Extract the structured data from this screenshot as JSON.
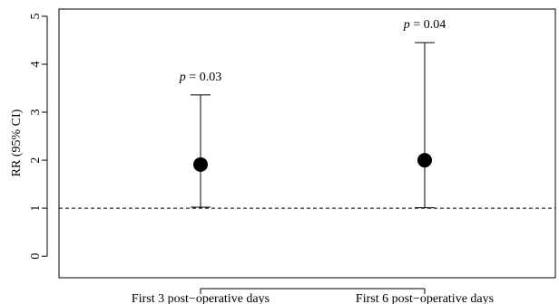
{
  "chart_data": {
    "type": "scatter",
    "ylabel": "RR (95% CI)",
    "ylim": [
      -0.45,
      5.15
    ],
    "yticks": [
      "0",
      "1",
      "2",
      "3",
      "4",
      "5"
    ],
    "reference_line": {
      "y": 1,
      "style": "dashed"
    },
    "categories": [
      "First 3 post−operative days",
      "First 6 post−operative days"
    ],
    "points": [
      {
        "category": "First 3 post−operative days",
        "rr": 1.91,
        "ci_low": 1.02,
        "ci_high": 3.36,
        "p_prefix": "p",
        "p_value": " = 0.03"
      },
      {
        "category": "First 6 post−operative days",
        "rr": 2.0,
        "ci_low": 1.01,
        "ci_high": 4.45,
        "p_prefix": "p",
        "p_value": " = 0.04"
      }
    ],
    "grid": false,
    "colors": {
      "marker": "#000000",
      "line": "#000000"
    }
  }
}
